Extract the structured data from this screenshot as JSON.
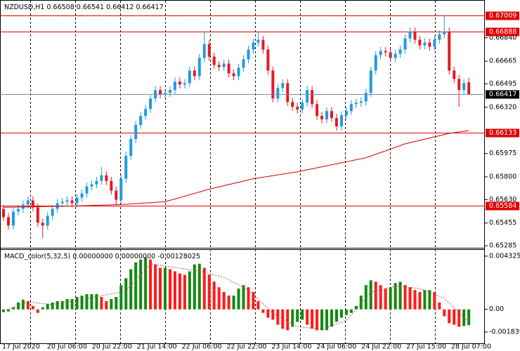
{
  "chart_data": [
    {
      "type": "candlestick",
      "title": "NZDUSD,H1",
      "open": [
        0.6556,
        0.65499,
        0.65436,
        0.65541,
        0.65561,
        0.65593,
        0.65624,
        0.65572,
        0.65457,
        0.65436,
        0.65509,
        0.65561,
        0.65603,
        0.65614,
        0.65624,
        0.65603,
        0.65645,
        0.65676,
        0.65729,
        0.65744,
        0.6577,
        0.65812,
        0.6577,
        0.65697,
        0.65629,
        0.65786,
        0.65958,
        0.66083,
        0.66188,
        0.66256,
        0.66308,
        0.66386,
        0.66449,
        0.66418,
        0.66428,
        0.66449,
        0.66512,
        0.66491,
        0.66501,
        0.66595,
        0.66553,
        0.66689,
        0.66793,
        0.66699,
        0.66637,
        0.66621,
        0.66647,
        0.66574,
        0.66553,
        0.66616,
        0.66679,
        0.66752,
        0.66804,
        0.66825,
        0.66752,
        0.66595,
        0.66386,
        0.66465,
        0.66501,
        0.6636,
        0.66324,
        0.66303,
        0.66355,
        0.66449,
        0.66344,
        0.66256,
        0.6623,
        0.66292,
        0.6624,
        0.66177,
        0.66261,
        0.66292,
        0.66344,
        0.66355,
        0.66365,
        0.66428,
        0.66595,
        0.6671,
        0.66741,
        0.66731,
        0.66689,
        0.6672,
        0.66752,
        0.66835,
        0.66887,
        0.66825,
        0.66783,
        0.66804,
        0.66773,
        0.66825,
        0.66866,
        0.66887,
        0.66595,
        0.66532,
        0.66449,
        0.66508
      ],
      "high": [
        0.6559,
        0.65529,
        0.65571,
        0.65591,
        0.65623,
        0.65654,
        0.65654,
        0.65602,
        0.65487,
        0.65539,
        0.65591,
        0.65633,
        0.65644,
        0.65654,
        0.65654,
        0.65675,
        0.65706,
        0.65759,
        0.65774,
        0.658,
        0.65875,
        0.65842,
        0.658,
        0.65727,
        0.65816,
        0.65988,
        0.66113,
        0.66218,
        0.66286,
        0.66338,
        0.66416,
        0.66479,
        0.66479,
        0.66458,
        0.66479,
        0.66542,
        0.66542,
        0.66531,
        0.66625,
        0.66625,
        0.66719,
        0.66888,
        0.66823,
        0.66729,
        0.66667,
        0.66677,
        0.66677,
        0.66604,
        0.66646,
        0.66709,
        0.66782,
        0.66834,
        0.6688,
        0.66855,
        0.66782,
        0.66625,
        0.66495,
        0.66531,
        0.66531,
        0.6639,
        0.66354,
        0.66385,
        0.66479,
        0.66479,
        0.66374,
        0.66286,
        0.66322,
        0.66322,
        0.6627,
        0.66291,
        0.66322,
        0.66374,
        0.66385,
        0.66395,
        0.66458,
        0.66625,
        0.6674,
        0.66771,
        0.66771,
        0.66761,
        0.6675,
        0.66782,
        0.66865,
        0.66917,
        0.66917,
        0.66855,
        0.66834,
        0.66834,
        0.66855,
        0.66896,
        0.67009,
        0.66917,
        0.66625,
        0.66562,
        0.66531,
        0.66541
      ],
      "low": [
        0.65469,
        0.65406,
        0.65406,
        0.65511,
        0.65531,
        0.65563,
        0.65542,
        0.65427,
        0.65342,
        0.65406,
        0.65479,
        0.65531,
        0.65573,
        0.65584,
        0.65573,
        0.65573,
        0.65615,
        0.65646,
        0.65699,
        0.65714,
        0.6574,
        0.6574,
        0.65667,
        0.6559,
        0.65599,
        0.65756,
        0.65928,
        0.66053,
        0.66158,
        0.66226,
        0.66278,
        0.66356,
        0.66388,
        0.66388,
        0.66398,
        0.66419,
        0.66461,
        0.66461,
        0.66471,
        0.66523,
        0.66523,
        0.66659,
        0.66669,
        0.66607,
        0.66591,
        0.66591,
        0.66544,
        0.66523,
        0.66523,
        0.66586,
        0.66649,
        0.66722,
        0.66774,
        0.66722,
        0.66565,
        0.66356,
        0.66356,
        0.66435,
        0.6633,
        0.66294,
        0.66273,
        0.66273,
        0.66325,
        0.66314,
        0.66226,
        0.662,
        0.662,
        0.6621,
        0.66147,
        0.66147,
        0.66231,
        0.66262,
        0.66314,
        0.66325,
        0.66335,
        0.66398,
        0.66565,
        0.6668,
        0.66701,
        0.66659,
        0.66659,
        0.6669,
        0.66722,
        0.66805,
        0.66795,
        0.66753,
        0.66753,
        0.66743,
        0.66743,
        0.66795,
        0.66836,
        0.66565,
        0.66502,
        0.66324,
        0.66419,
        0.66412
      ],
      "close": [
        0.65499,
        0.65436,
        0.65541,
        0.65561,
        0.65593,
        0.65624,
        0.65572,
        0.65457,
        0.65436,
        0.65509,
        0.65561,
        0.65603,
        0.65614,
        0.65624,
        0.65603,
        0.65645,
        0.65676,
        0.65729,
        0.65744,
        0.6577,
        0.65812,
        0.6577,
        0.65697,
        0.65629,
        0.65786,
        0.65958,
        0.66083,
        0.66188,
        0.66256,
        0.66308,
        0.66386,
        0.66449,
        0.66418,
        0.66428,
        0.66449,
        0.66512,
        0.66491,
        0.66501,
        0.66595,
        0.66553,
        0.66689,
        0.66793,
        0.66699,
        0.66637,
        0.66621,
        0.66647,
        0.66574,
        0.66553,
        0.66616,
        0.66679,
        0.66752,
        0.66804,
        0.66825,
        0.66752,
        0.66595,
        0.66386,
        0.66465,
        0.66501,
        0.6636,
        0.66324,
        0.66303,
        0.66355,
        0.66449,
        0.66344,
        0.66256,
        0.6623,
        0.66292,
        0.6624,
        0.66177,
        0.66261,
        0.66292,
        0.66344,
        0.66355,
        0.66365,
        0.66428,
        0.66595,
        0.6671,
        0.66741,
        0.66731,
        0.66689,
        0.6672,
        0.66752,
        0.66835,
        0.66887,
        0.66825,
        0.66783,
        0.66804,
        0.66773,
        0.66825,
        0.66866,
        0.66887,
        0.66595,
        0.66532,
        0.66449,
        0.66501,
        0.66417
      ],
      "colors": {
        "up": "#1e9be0",
        "down": "#e31b23"
      },
      "ylim": [
        0.65275,
        0.67117
      ],
      "yticks": [
        {
          "value": 0.6684,
          "label": "0.66840"
        },
        0.66665,
        0.66495,
        {
          "value": 0.6632,
          "label": "0.66320"
        },
        0.65975,
        {
          "value": 0.658,
          "label": "0.65800"
        },
        {
          "value": 0.6563,
          "label": "0.65630"
        },
        0.65455,
        0.65285
      ],
      "levels": [
        {
          "value": 0.67009,
          "color": "#e00000"
        },
        {
          "value": 0.66888,
          "color": "#e00000"
        },
        {
          "value": 0.66133,
          "color": "#e00000"
        },
        {
          "value": 0.65584,
          "color": "#e00000"
        }
      ],
      "current_color": "#7a8ea0",
      "ma": {
        "x": [
          0,
          14,
          24,
          33,
          42,
          51,
          60,
          65,
          74,
          82,
          91,
          95
        ],
        "values": [
          0.65572,
          0.65582,
          0.65593,
          0.65614,
          0.65708,
          0.65786,
          0.65838,
          0.65875,
          0.65943,
          0.66047,
          0.66125,
          0.66146
        ],
        "color": "#cc0000"
      },
      "time_labels": [
        "17 Jul 2020",
        "20 Jul 06:00",
        "20 Jul 22:00",
        "21 Jul 14:00",
        "22 Jul 06:00",
        "22 Jul 22:00",
        "23 Jul 14:00",
        "24 Jul 06:00",
        "24 Jul 22:00",
        "27 Jul 15:00",
        "28 Jul 07:00"
      ]
    },
    {
      "type": "bar",
      "title": "MACD_color(5,32,5)",
      "readouts": [
        {
          "value": 0,
          "label": "0.00000000"
        },
        {
          "value": 0,
          "label": "0.00000000"
        }
      ],
      "values": [
        -0.00022,
        -0.00017,
        0.00017,
        0.00056,
        0.00079,
        0.00067,
        0.00028,
        -0.00028,
        0.00017,
        0.00045,
        0.00056,
        0.00067,
        0.00067,
        0.00084,
        0.00084,
        0.00101,
        0.00112,
        0.00124,
        0.00124,
        0.00124,
        0.00101,
        0.00067,
        0.00084,
        0.00101,
        0.00197,
        0.00253,
        0.00326,
        0.00382,
        0.00405,
        0.00422,
        0.00405,
        0.00365,
        0.00337,
        0.00337,
        0.00326,
        0.00309,
        0.00292,
        0.00281,
        0.00309,
        0.00365,
        0.00371,
        0.00337,
        0.00281,
        0.00225,
        0.0018,
        0.00141,
        0.00112,
        0.00112,
        0.00169,
        0.00197,
        0.0018,
        0.00141,
        0.00067,
        -0.00028,
        -0.00067,
        -0.00084,
        -0.00124,
        -0.00157,
        -0.00169,
        -0.00141,
        -0.00101,
        -0.00084,
        -0.00124,
        -0.00157,
        -0.00169,
        -0.00169,
        -0.00169,
        -0.00141,
        -0.00101,
        -0.00067,
        -0.00045,
        -0.00028,
        0.00028,
        0.00112,
        0.00197,
        0.00236,
        0.00225,
        0.00197,
        0.00169,
        0.0018,
        0.00214,
        0.00225,
        0.00197,
        0.0018,
        0.00157,
        0.00141,
        0.00157,
        0.00157,
        0.00141,
        0.00056,
        -0.00056,
        -0.00112,
        -0.00124,
        -0.00141,
        -0.00135,
        -0.00128025
      ],
      "colors": {
        "up": "#118a11",
        "down": "#ff1a1a"
      },
      "signal": {
        "x": [
          0,
          5,
          10,
          20,
          25,
          30,
          35,
          40,
          45,
          50,
          55,
          60,
          65,
          70,
          75,
          80,
          85,
          90,
          95
        ],
        "values": [
          -0.0001,
          0.0006,
          0.0004,
          0.0011,
          0.0015,
          0.0037,
          0.0034,
          0.0031,
          0.0026,
          0.0016,
          -0.0003,
          -0.0014,
          -0.0016,
          -0.0009,
          0.0014,
          0.0019,
          0.0017,
          0.0009,
          -0.001
        ],
        "color": "#b05050"
      },
      "ylim": [
        -0.00275,
        0.00483
      ],
      "yticks": [
        0.0043256,
        {
          "value": 0,
          "label": "0.00"
        },
        -0.001839
      ]
    }
  ]
}
